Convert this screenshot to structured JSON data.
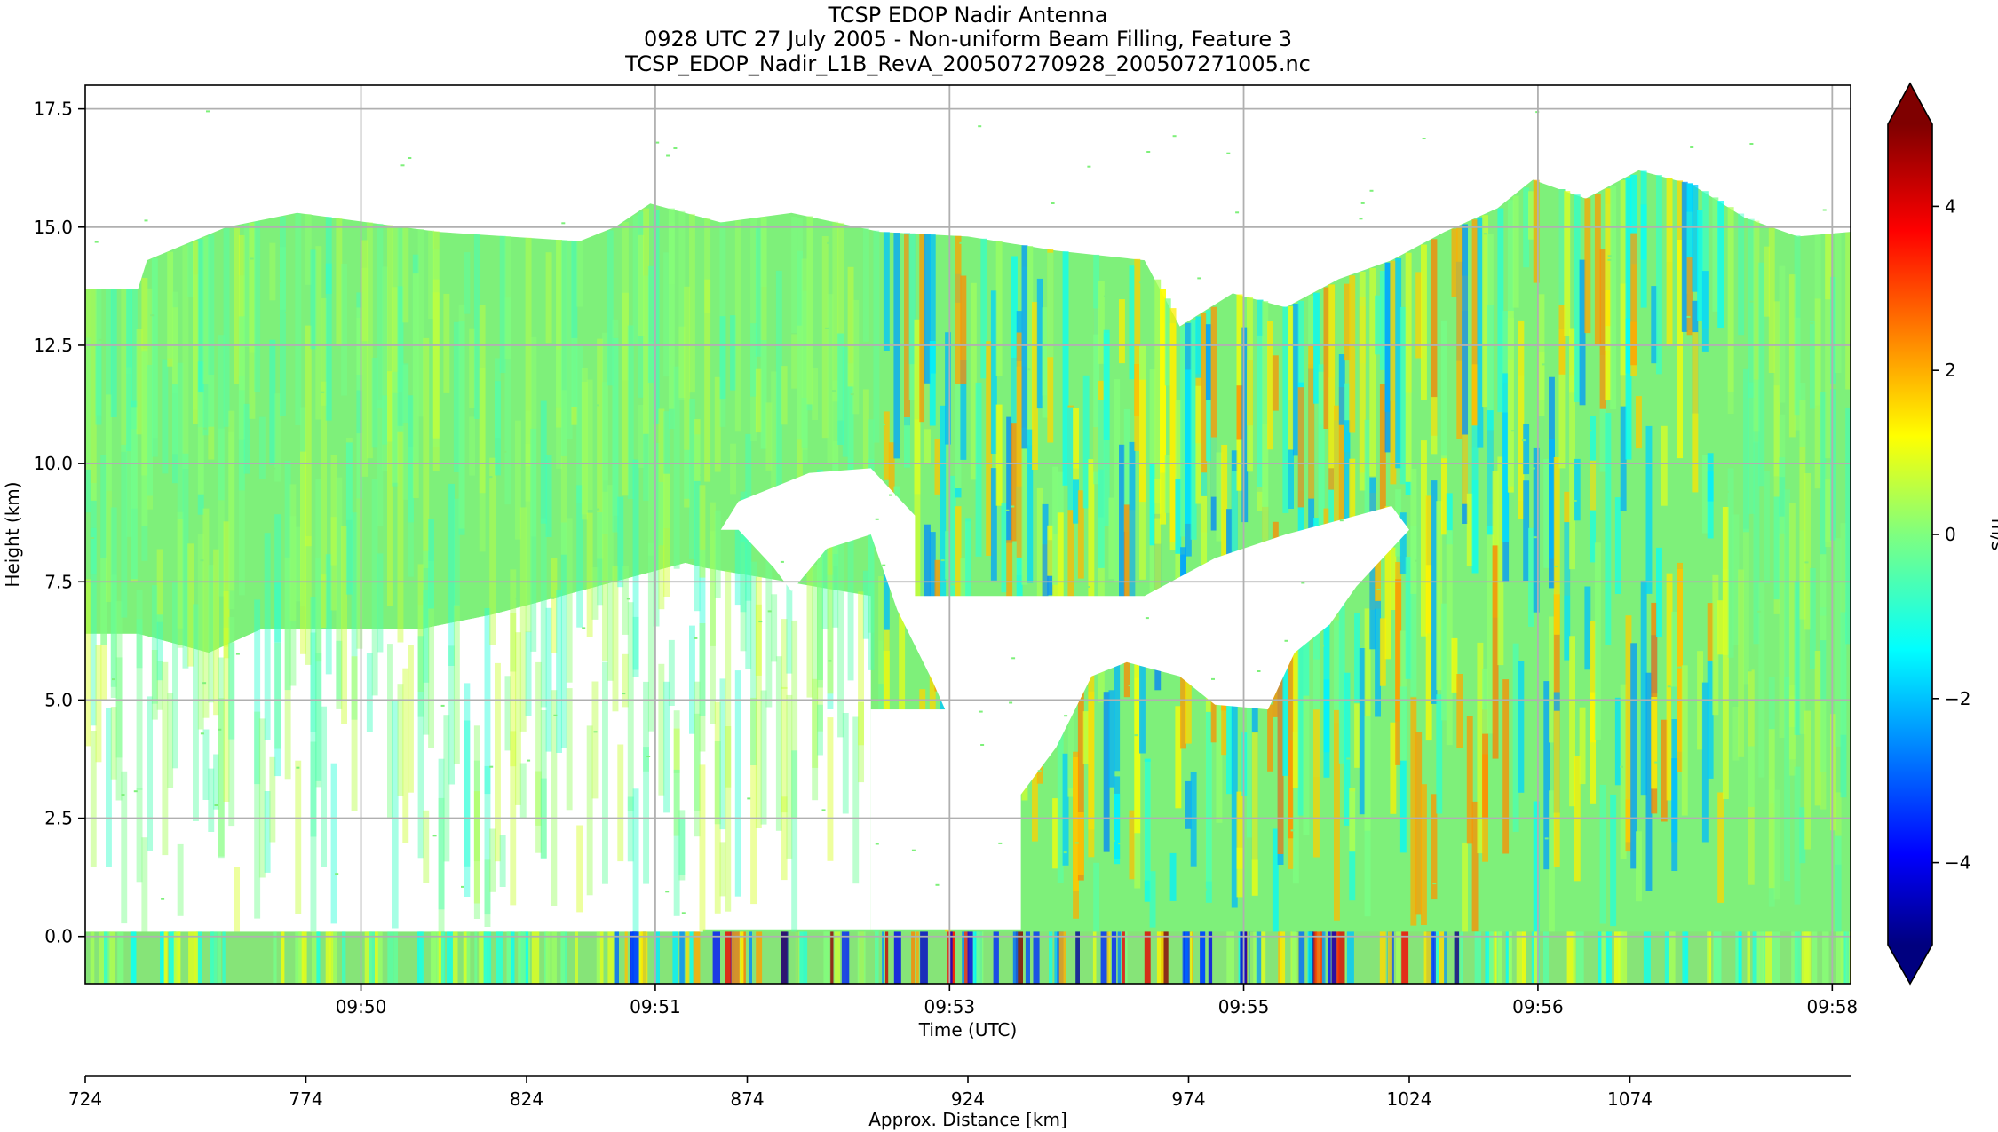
{
  "chart_data": {
    "type": "heatmap",
    "title_lines": [
      "TCSP EDOP Nadir Antenna",
      "0928 UTC 27 July 2005 - Non-uniform Beam Filling, Feature 3",
      "TCSP_EDOP_Nadir_L1B_RevA_200507270928_200507271005.nc"
    ],
    "xlabel": "Time (UTC)",
    "ylabel": "Height (km)",
    "x_tick_labels": [
      "09:50",
      "09:51",
      "09:53",
      "09:55",
      "09:56",
      "09:58"
    ],
    "y_ticks": [
      0.0,
      2.5,
      5.0,
      7.5,
      10.0,
      12.5,
      15.0,
      17.5
    ],
    "y_tick_labels": [
      "0.0",
      "2.5",
      "5.0",
      "7.5",
      "10.0",
      "12.5",
      "15.0",
      "17.5"
    ],
    "ylim": [
      -1.0,
      18.0
    ],
    "grid": true,
    "secondary_axis": {
      "label": "Approx. Distance [km]",
      "ticks": [
        724,
        774,
        824,
        874,
        924,
        974,
        1024,
        1074
      ],
      "tick_labels": [
        "724",
        "774",
        "824",
        "874",
        "924",
        "974",
        "1024",
        "1074"
      ],
      "xlim": [
        724,
        1124
      ]
    },
    "colorbar": {
      "label": "m/s",
      "ticks": [
        4,
        2,
        0,
        -2,
        -4
      ],
      "tick_labels": [
        "4",
        "2",
        "0",
        "−2",
        "−4"
      ],
      "vmin": -5,
      "vmax": 5,
      "extend": "both",
      "colormap": "jet"
    },
    "cloud_top_km": [
      [
        0,
        13.7
      ],
      [
        0.03,
        13.7
      ],
      [
        0.035,
        14.3
      ],
      [
        0.08,
        15.0
      ],
      [
        0.12,
        15.3
      ],
      [
        0.2,
        14.9
      ],
      [
        0.28,
        14.7
      ],
      [
        0.3,
        15.0
      ],
      [
        0.32,
        15.5
      ],
      [
        0.36,
        15.1
      ],
      [
        0.4,
        15.3
      ],
      [
        0.45,
        14.9
      ],
      [
        0.5,
        14.8
      ],
      [
        0.55,
        14.5
      ],
      [
        0.6,
        14.3
      ],
      [
        0.62,
        12.9
      ],
      [
        0.65,
        13.6
      ],
      [
        0.68,
        13.3
      ],
      [
        0.71,
        13.9
      ],
      [
        0.74,
        14.3
      ],
      [
        0.77,
        14.9
      ],
      [
        0.8,
        15.4
      ],
      [
        0.82,
        16.0
      ],
      [
        0.85,
        15.6
      ],
      [
        0.88,
        16.2
      ],
      [
        0.91,
        15.9
      ],
      [
        0.94,
        15.2
      ],
      [
        0.97,
        14.8
      ],
      [
        1.0,
        14.9
      ]
    ],
    "anvil_base_km": [
      [
        0,
        6.4
      ],
      [
        0.03,
        6.4
      ],
      [
        0.07,
        6.0
      ],
      [
        0.1,
        6.5
      ],
      [
        0.15,
        6.5
      ],
      [
        0.19,
        6.5
      ],
      [
        0.23,
        6.8
      ],
      [
        0.27,
        7.2
      ],
      [
        0.31,
        7.6
      ],
      [
        0.34,
        7.9
      ],
      [
        0.35,
        7.8
      ]
    ],
    "echo_free_region_km": [
      [
        0.445,
        9.9
      ],
      [
        0.47,
        8.9
      ],
      [
        0.47,
        7.2
      ],
      [
        0.6,
        7.2
      ],
      [
        0.64,
        8.0
      ],
      [
        0.68,
        8.5
      ],
      [
        0.72,
        8.9
      ],
      [
        0.74,
        9.1
      ],
      [
        0.75,
        8.6
      ],
      [
        0.735,
        8.0
      ],
      [
        0.72,
        7.4
      ],
      [
        0.705,
        6.6
      ],
      [
        0.685,
        6.0
      ],
      [
        0.67,
        4.8
      ],
      [
        0.64,
        4.9
      ],
      [
        0.62,
        5.5
      ],
      [
        0.59,
        5.8
      ],
      [
        0.57,
        5.5
      ],
      [
        0.55,
        4.0
      ],
      [
        0.53,
        3.0
      ],
      [
        0.5,
        3.7
      ],
      [
        0.48,
        5.4
      ],
      [
        0.46,
        6.9
      ],
      [
        0.445,
        8.5
      ],
      [
        0.42,
        8.2
      ],
      [
        0.4,
        7.3
      ],
      [
        0.39,
        7.8
      ],
      [
        0.37,
        8.6
      ],
      [
        0.36,
        8.6
      ],
      [
        0.37,
        9.2
      ],
      [
        0.41,
        9.8
      ]
    ],
    "surface_band_km": [
      -1.0,
      0.1
    ],
    "samples_per_row": 345,
    "rows_km_step": 0.5
  },
  "colors": {
    "background": "#ffffff",
    "grid": "#b0b0b0",
    "base_echo": "#7ef07a",
    "surface_band": "#86e478"
  }
}
